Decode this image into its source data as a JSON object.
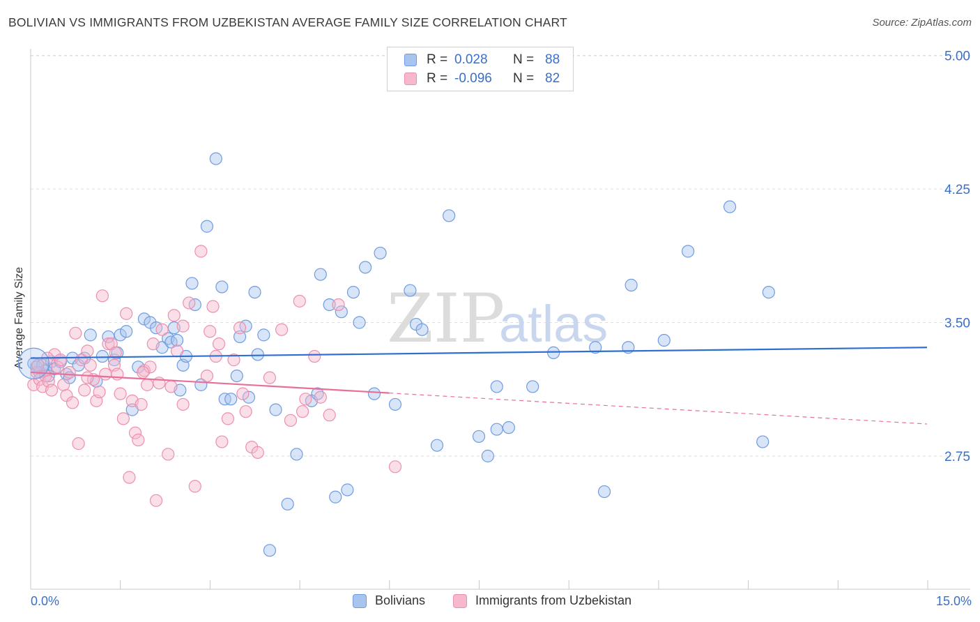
{
  "header": {
    "title": "BOLIVIAN VS IMMIGRANTS FROM UZBEKISTAN AVERAGE FAMILY SIZE CORRELATION CHART",
    "source": "Source: ZipAtlas.com"
  },
  "watermark": {
    "zip": "ZIP",
    "atlas": "atlas"
  },
  "colors": {
    "blue_fill": "#a8c4ee",
    "blue_stroke": "#6f9ce0",
    "blue_line": "#2f6fd0",
    "pink_fill": "#f6b8cc",
    "pink_stroke": "#ec8fae",
    "pink_line": "#e86f9a",
    "axis_label": "#3b6fc6",
    "grid": "#dddddd"
  },
  "legend": {
    "rows": [
      {
        "r_label": "R =",
        "r_value": "0.028",
        "n_label": "N =",
        "n_value": "88",
        "series": "blue"
      },
      {
        "r_label": "R =",
        "r_value": "-0.096",
        "n_label": "N =",
        "n_value": "82",
        "series": "pink"
      }
    ]
  },
  "bottom_legend": {
    "items": [
      {
        "label": "Bolivians",
        "series": "blue"
      },
      {
        "label": "Immigrants from Uzbekistan",
        "series": "pink"
      }
    ]
  },
  "chart_data": {
    "type": "scatter",
    "title": "BOLIVIAN VS IMMIGRANTS FROM UZBEKISTAN AVERAGE FAMILY SIZE CORRELATION CHART",
    "xlabel": "",
    "ylabel": "Average Family Size",
    "xlim": [
      0,
      15
    ],
    "ylim": [
      2.0,
      5.1
    ],
    "x_tick_labels": {
      "min": "0.0%",
      "max": "15.0%"
    },
    "y_ticks": [
      {
        "value": 5.0,
        "label": "5.00"
      },
      {
        "value": 4.25,
        "label": "4.25"
      },
      {
        "value": 3.5,
        "label": "3.50"
      },
      {
        "value": 2.75,
        "label": "2.75"
      }
    ],
    "series": [
      {
        "name": "Bolivians",
        "color": "blue",
        "R": 0.028,
        "N": 88,
        "trend": {
          "x0": 0.0,
          "y0": 3.3,
          "x1": 15.0,
          "y1": 3.36,
          "dash_from": null
        },
        "points": [
          [
            0.05,
            3.27
          ],
          [
            0.1,
            3.25
          ],
          [
            0.15,
            3.22
          ],
          [
            0.2,
            3.26
          ],
          [
            0.25,
            3.23
          ],
          [
            0.3,
            3.2
          ],
          [
            0.35,
            3.28
          ],
          [
            0.4,
            3.24
          ],
          [
            0.5,
            3.28
          ],
          [
            0.6,
            3.21
          ],
          [
            0.7,
            3.3
          ],
          [
            0.8,
            3.26
          ],
          [
            0.9,
            3.3
          ],
          [
            1.0,
            3.43
          ],
          [
            1.1,
            3.17
          ],
          [
            1.2,
            3.31
          ],
          [
            1.3,
            3.42
          ],
          [
            1.4,
            3.29
          ],
          [
            1.5,
            3.43
          ],
          [
            1.6,
            3.45
          ],
          [
            1.7,
            3.01
          ],
          [
            1.8,
            3.25
          ],
          [
            1.9,
            3.52
          ],
          [
            2.0,
            3.5
          ],
          [
            2.1,
            3.47
          ],
          [
            2.2,
            3.36
          ],
          [
            2.3,
            3.41
          ],
          [
            2.35,
            3.39
          ],
          [
            2.4,
            3.47
          ],
          [
            2.5,
            3.12
          ],
          [
            2.55,
            3.26
          ],
          [
            2.6,
            3.31
          ],
          [
            2.7,
            3.72
          ],
          [
            2.75,
            3.6
          ],
          [
            2.85,
            3.15
          ],
          [
            2.95,
            4.04
          ],
          [
            3.1,
            4.42
          ],
          [
            3.2,
            3.7
          ],
          [
            3.25,
            3.07
          ],
          [
            3.35,
            3.07
          ],
          [
            3.5,
            3.42
          ],
          [
            3.6,
            3.48
          ],
          [
            3.75,
            3.67
          ],
          [
            3.8,
            3.32
          ],
          [
            3.9,
            3.43
          ],
          [
            4.0,
            2.22
          ],
          [
            4.1,
            3.01
          ],
          [
            4.3,
            2.48
          ],
          [
            4.45,
            2.76
          ],
          [
            4.7,
            3.06
          ],
          [
            4.8,
            3.1
          ],
          [
            4.85,
            3.77
          ],
          [
            5.0,
            3.6
          ],
          [
            5.1,
            2.52
          ],
          [
            5.2,
            3.56
          ],
          [
            5.3,
            2.56
          ],
          [
            5.4,
            3.67
          ],
          [
            5.5,
            3.5
          ],
          [
            5.6,
            3.81
          ],
          [
            5.75,
            3.1
          ],
          [
            5.85,
            3.89
          ],
          [
            6.1,
            3.04
          ],
          [
            6.35,
            3.68
          ],
          [
            6.45,
            3.49
          ],
          [
            6.55,
            3.46
          ],
          [
            6.8,
            2.81
          ],
          [
            7.0,
            4.1
          ],
          [
            7.5,
            2.86
          ],
          [
            7.65,
            2.75
          ],
          [
            7.8,
            2.9
          ],
          [
            7.8,
            3.14
          ],
          [
            8.0,
            2.91
          ],
          [
            8.4,
            3.14
          ],
          [
            8.75,
            3.33
          ],
          [
            9.6,
            2.55
          ],
          [
            9.45,
            3.36
          ],
          [
            10.0,
            3.36
          ],
          [
            10.05,
            3.71
          ],
          [
            10.6,
            3.4
          ],
          [
            11.0,
            3.9
          ],
          [
            11.7,
            4.15
          ],
          [
            12.25,
            2.83
          ],
          [
            12.35,
            3.67
          ],
          [
            1.45,
            3.33
          ],
          [
            0.65,
            3.19
          ],
          [
            2.45,
            3.4
          ],
          [
            3.45,
            3.2
          ],
          [
            3.65,
            3.08
          ]
        ]
      },
      {
        "name": "Immigrants from Uzbekistan",
        "color": "pink",
        "R": -0.096,
        "N": 82,
        "trend": {
          "x0": 0.0,
          "y0": 3.22,
          "x1": 15.0,
          "y1": 2.93,
          "dash_from": 6.0
        },
        "points": [
          [
            0.05,
            3.15
          ],
          [
            0.1,
            3.22
          ],
          [
            0.15,
            3.18
          ],
          [
            0.2,
            3.14
          ],
          [
            0.25,
            3.2
          ],
          [
            0.3,
            3.17
          ],
          [
            0.35,
            3.12
          ],
          [
            0.4,
            3.32
          ],
          [
            0.45,
            3.25
          ],
          [
            0.5,
            3.29
          ],
          [
            0.55,
            3.15
          ],
          [
            0.6,
            3.09
          ],
          [
            0.65,
            3.22
          ],
          [
            0.7,
            3.05
          ],
          [
            0.75,
            3.44
          ],
          [
            0.8,
            2.82
          ],
          [
            0.85,
            3.29
          ],
          [
            0.9,
            3.12
          ],
          [
            0.95,
            3.34
          ],
          [
            1.0,
            3.26
          ],
          [
            1.05,
            3.18
          ],
          [
            1.1,
            3.06
          ],
          [
            1.15,
            3.11
          ],
          [
            1.2,
            3.65
          ],
          [
            1.25,
            3.21
          ],
          [
            1.3,
            3.38
          ],
          [
            1.35,
            3.38
          ],
          [
            1.4,
            3.26
          ],
          [
            1.45,
            3.21
          ],
          [
            1.5,
            3.1
          ],
          [
            1.55,
            2.96
          ],
          [
            1.6,
            3.55
          ],
          [
            1.65,
            2.63
          ],
          [
            1.7,
            3.06
          ],
          [
            1.75,
            2.88
          ],
          [
            1.8,
            2.84
          ],
          [
            1.85,
            3.04
          ],
          [
            1.9,
            3.23
          ],
          [
            1.95,
            3.15
          ],
          [
            2.0,
            3.25
          ],
          [
            2.05,
            3.38
          ],
          [
            2.1,
            2.5
          ],
          [
            2.15,
            3.16
          ],
          [
            2.2,
            3.46
          ],
          [
            2.3,
            2.76
          ],
          [
            2.35,
            3.14
          ],
          [
            2.4,
            3.54
          ],
          [
            2.45,
            3.34
          ],
          [
            2.55,
            3.48
          ],
          [
            2.65,
            3.61
          ],
          [
            2.75,
            2.58
          ],
          [
            2.85,
            3.9
          ],
          [
            2.95,
            3.2
          ],
          [
            3.0,
            3.45
          ],
          [
            3.05,
            3.59
          ],
          [
            3.1,
            3.31
          ],
          [
            3.15,
            3.38
          ],
          [
            3.2,
            2.83
          ],
          [
            3.3,
            2.96
          ],
          [
            3.4,
            3.29
          ],
          [
            3.5,
            3.47
          ],
          [
            3.6,
            3.0
          ],
          [
            3.7,
            2.8
          ],
          [
            3.8,
            2.77
          ],
          [
            4.0,
            3.19
          ],
          [
            4.2,
            3.46
          ],
          [
            4.35,
            2.95
          ],
          [
            4.5,
            3.62
          ],
          [
            4.55,
            3.0
          ],
          [
            4.6,
            3.07
          ],
          [
            4.75,
            3.31
          ],
          [
            4.85,
            3.08
          ],
          [
            5.0,
            2.98
          ],
          [
            5.15,
            3.6
          ],
          [
            6.1,
            2.69
          ],
          [
            0.12,
            3.26
          ],
          [
            0.28,
            3.3
          ],
          [
            0.95,
            3.19
          ],
          [
            1.42,
            3.33
          ],
          [
            1.88,
            3.22
          ],
          [
            2.55,
            3.04
          ],
          [
            3.55,
            3.1
          ]
        ]
      }
    ]
  }
}
